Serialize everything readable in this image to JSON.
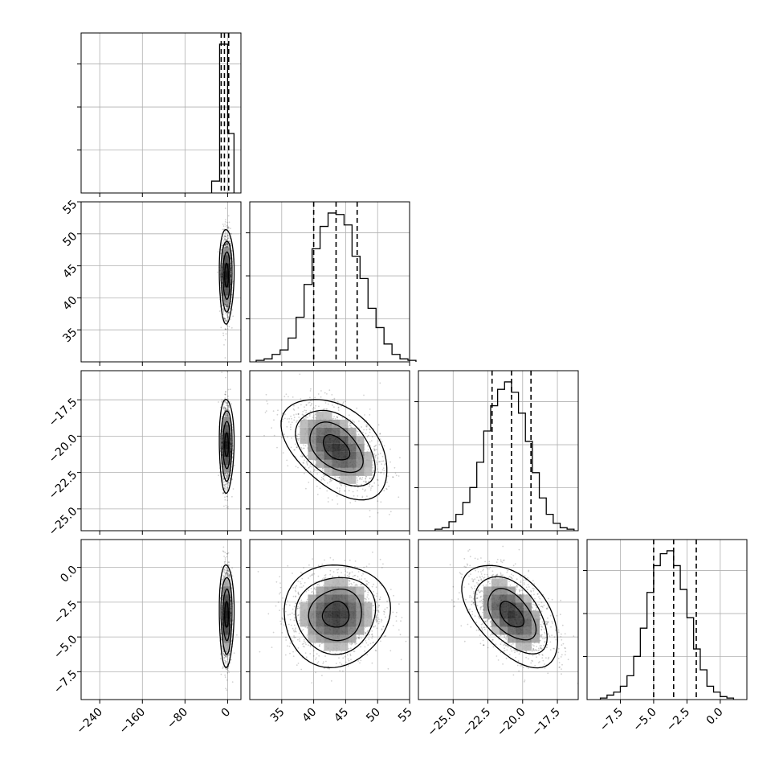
{
  "chart_data": {
    "type": "corner",
    "parameters": 4,
    "grid": true,
    "quantile_lines": "dashed",
    "histograms": [
      {
        "param_index": 0,
        "range": [
          -275,
          25
        ],
        "bin_edges": [
          -30,
          -15,
          0,
          12
        ],
        "counts": [
          0.08,
          1.0,
          0.4
        ],
        "quantiles": [
          -12,
          -6,
          2
        ]
      },
      {
        "param_index": 1,
        "range": [
          30,
          55
        ],
        "bins_start": 31,
        "bin_width": 1.25,
        "counts": [
          0.01,
          0.02,
          0.05,
          0.08,
          0.16,
          0.3,
          0.52,
          0.76,
          0.91,
          1.0,
          0.99,
          0.92,
          0.71,
          0.56,
          0.36,
          0.23,
          0.12,
          0.05,
          0.02,
          0.01
        ],
        "quantiles": [
          40,
          43.5,
          46.8
        ]
      },
      {
        "param_index": 2,
        "range": [
          -27.5,
          -16
        ],
        "bins_start": -26.3,
        "bin_width": 0.5,
        "counts": [
          0.01,
          0.02,
          0.06,
          0.11,
          0.19,
          0.29,
          0.46,
          0.67,
          0.84,
          0.95,
          1.0,
          0.93,
          0.79,
          0.6,
          0.39,
          0.22,
          0.11,
          0.05,
          0.02,
          0.01
        ],
        "quantiles": [
          -22.2,
          -20.8,
          -19.4
        ]
      },
      {
        "param_index": 3,
        "range": [
          -10,
          2
        ],
        "bins_start": -9.0,
        "bin_width": 0.5,
        "counts": [
          0.01,
          0.03,
          0.05,
          0.09,
          0.16,
          0.29,
          0.48,
          0.72,
          0.9,
          0.98,
          1.0,
          0.9,
          0.74,
          0.55,
          0.34,
          0.2,
          0.09,
          0.05,
          0.02,
          0.01
        ],
        "quantiles": [
          -5.0,
          -3.5,
          -1.8
        ]
      }
    ],
    "panels_2d": [
      {
        "row": 1,
        "col": 0,
        "x_range": [
          -275,
          25
        ],
        "y_range": [
          30,
          55
        ],
        "mean": [
          -2,
          43.5
        ],
        "sd": [
          4.5,
          3.2
        ],
        "corr": 0.0
      },
      {
        "row": 2,
        "col": 0,
        "x_range": [
          -275,
          25
        ],
        "y_range": [
          -26.5,
          -15.5
        ],
        "mean": [
          -2,
          -20.6
        ],
        "sd": [
          4.5,
          1.4
        ],
        "corr": 0.0
      },
      {
        "row": 3,
        "col": 0,
        "x_range": [
          -275,
          25
        ],
        "y_range": [
          -9.5,
          2.0
        ],
        "mean": [
          -2,
          -3.4
        ],
        "sd": [
          4.5,
          1.6
        ],
        "corr": 0.0
      },
      {
        "row": 2,
        "col": 1,
        "x_range": [
          30,
          55
        ],
        "y_range": [
          -26.5,
          -15.5
        ],
        "mean": [
          43.5,
          -20.8
        ],
        "sd": [
          3.6,
          1.5
        ],
        "corr": -0.45
      },
      {
        "row": 3,
        "col": 1,
        "x_range": [
          30,
          55
        ],
        "y_range": [
          -9.5,
          2.0
        ],
        "mean": [
          43.5,
          -3.4
        ],
        "sd": [
          3.6,
          1.6
        ],
        "corr": 0.05
      },
      {
        "row": 3,
        "col": 2,
        "x_range": [
          -27.5,
          -16
        ],
        "y_range": [
          -9.5,
          2.0
        ],
        "mean": [
          -20.8,
          -3.4
        ],
        "sd": [
          1.5,
          1.6
        ],
        "corr": -0.5
      }
    ],
    "contour_levels_sigma": [
      0.5,
      1.0,
      1.5,
      2.0
    ],
    "x_axis_ticks": [
      {
        "col": 0,
        "ticks": [
          -240,
          -160,
          -80,
          0
        ],
        "labels": [
          "−240",
          "−160",
          "−80",
          "0"
        ]
      },
      {
        "col": 1,
        "ticks": [
          35,
          40,
          45,
          50,
          55
        ],
        "labels": [
          "35",
          "40",
          "45",
          "50",
          "55"
        ]
      },
      {
        "col": 2,
        "ticks": [
          -25.0,
          -22.5,
          -20.0,
          -17.5
        ],
        "labels": [
          "−25.0",
          "−22.5",
          "−20.0",
          "−17.5"
        ]
      },
      {
        "col": 3,
        "ticks": [
          -7.5,
          -5.0,
          -2.5,
          0.0
        ],
        "labels": [
          "−7.5",
          "−5.0",
          "−2.5",
          "0.0"
        ]
      }
    ],
    "y_axis_ticks": [
      {
        "row": 1,
        "ticks": [
          35,
          40,
          45,
          50,
          55
        ],
        "labels": [
          "35",
          "40",
          "45",
          "50",
          "55"
        ]
      },
      {
        "row": 2,
        "ticks": [
          -25.0,
          -22.5,
          -20.0,
          -17.5
        ],
        "labels": [
          "−25.0",
          "−22.5",
          "−20.0",
          "−17.5"
        ]
      },
      {
        "row": 3,
        "ticks": [
          -7.5,
          -5.0,
          -2.5,
          0.0
        ],
        "labels": [
          "−7.5",
          "−5.0",
          "−2.5",
          "0.0"
        ]
      }
    ],
    "colors": {
      "line": "#000000",
      "grid": "#b0b0b0",
      "point": "#000000",
      "background": "#ffffff"
    }
  }
}
